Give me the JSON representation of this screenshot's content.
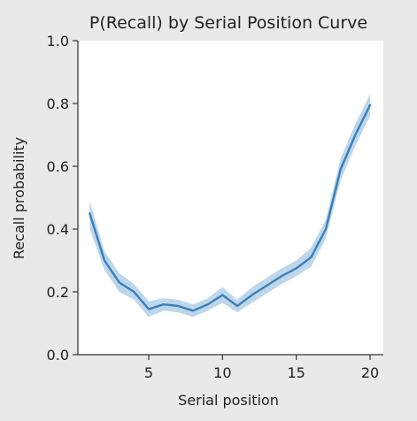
{
  "chart_data": {
    "type": "line",
    "title": "P(Recall) by Serial Position Curve",
    "xlabel": "Serial position",
    "ylabel": "Recall probability",
    "xlim": [
      0.2,
      20.9
    ],
    "ylim": [
      0.0,
      1.0
    ],
    "xticks": [
      5,
      10,
      15,
      20
    ],
    "yticks": [
      0.0,
      0.2,
      0.4,
      0.6,
      0.8,
      1.0
    ],
    "ytick_labels": [
      "0.0",
      "0.2",
      "0.4",
      "0.6",
      "0.8",
      "1.0"
    ],
    "grid": false,
    "series": [
      {
        "x": [
          1,
          2,
          3,
          4,
          5,
          6,
          7,
          8,
          9,
          10,
          11,
          12,
          13,
          14,
          15,
          16,
          17,
          18,
          19,
          20
        ],
        "values": [
          0.45,
          0.3,
          0.23,
          0.2,
          0.145,
          0.16,
          0.155,
          0.14,
          0.16,
          0.19,
          0.155,
          0.19,
          0.22,
          0.25,
          0.275,
          0.31,
          0.4,
          0.59,
          0.7,
          0.795
        ],
        "ci_lower": [
          0.4,
          0.27,
          0.2,
          0.175,
          0.12,
          0.14,
          0.135,
          0.12,
          0.14,
          0.165,
          0.135,
          0.165,
          0.195,
          0.225,
          0.25,
          0.28,
          0.37,
          0.555,
          0.665,
          0.76
        ],
        "ci_upper": [
          0.49,
          0.33,
          0.26,
          0.225,
          0.17,
          0.18,
          0.175,
          0.16,
          0.18,
          0.215,
          0.175,
          0.215,
          0.245,
          0.275,
          0.3,
          0.34,
          0.43,
          0.625,
          0.735,
          0.83
        ],
        "color": "#3a7fb8",
        "band_color": "#a8c8e3"
      }
    ]
  }
}
